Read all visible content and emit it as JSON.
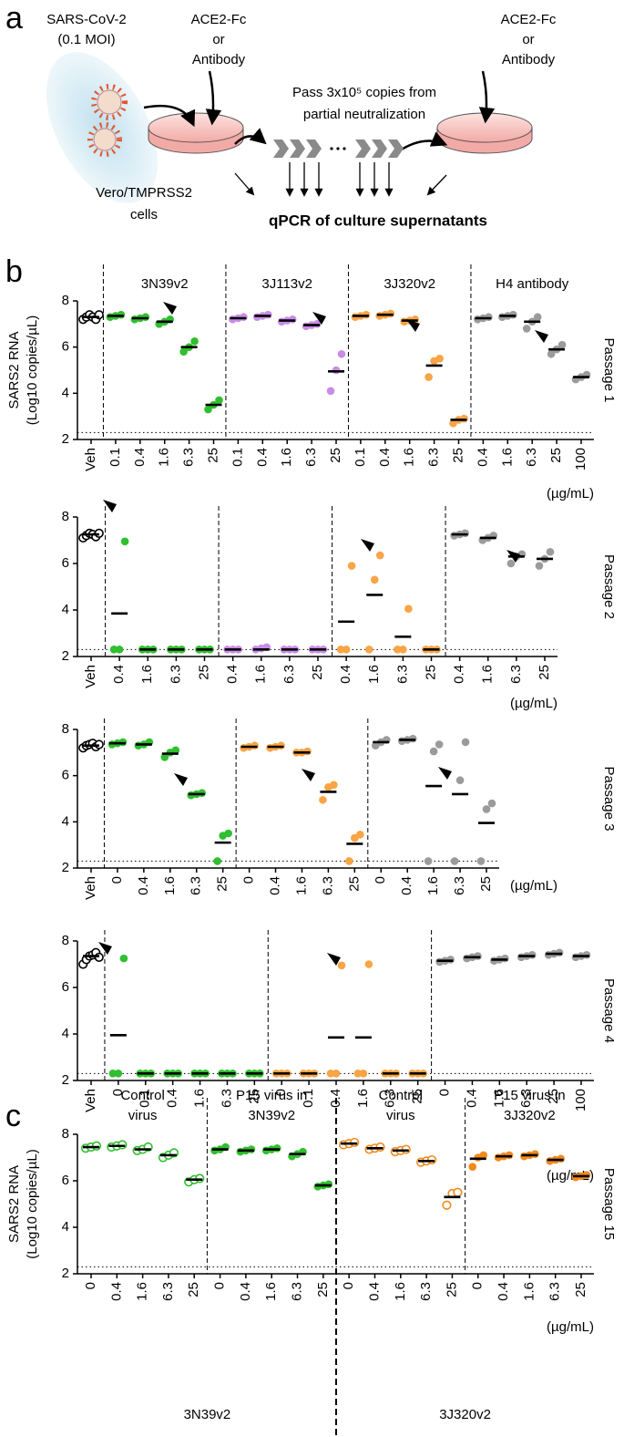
{
  "figure": {
    "panels": [
      "a",
      "b",
      "c"
    ],
    "diagram": {
      "virus_source": [
        "SARS-CoV-2",
        "(0.1 MOI)"
      ],
      "treatment_left": [
        "ACE2-Fc",
        "or",
        "Antibody"
      ],
      "treatment_right": [
        "ACE2-Fc",
        "or",
        "Antibody"
      ],
      "passage": [
        "Pass 3x10⁵ copies from",
        "partial neutralization"
      ],
      "cells": [
        "Vero/TMPRSS2",
        "cells"
      ],
      "readout": "qPCR of culture supernatants"
    }
  },
  "chart_data": [
    {
      "type": "dot",
      "title": "Passage 1",
      "ylabel": [
        "SARS2 RNA",
        "(Log10 copies/µL)"
      ],
      "ylim": [
        2,
        8
      ],
      "yticks": [
        2,
        4,
        6,
        8
      ],
      "limit": 2.3,
      "unit": "(µg/mL)",
      "groups": [
        {
          "color": "#000000",
          "open": true,
          "categories": [
            "Veh"
          ],
          "values": [
            7.3
          ],
          "points": [
            [
              7.2,
              7.3,
              7.4,
              7.3,
              7.2,
              7.4
            ]
          ]
        },
        {
          "name": "3N39v2",
          "color": "#2fbf2f",
          "categories": [
            "0.1",
            "0.4",
            "1.6",
            "6.3",
            "25"
          ],
          "values": [
            7.35,
            7.25,
            7.1,
            6.0,
            3.5
          ],
          "points": [
            [
              7.3,
              7.35,
              7.4
            ],
            [
              7.2,
              7.25,
              7.3
            ],
            [
              7.0,
              7.1,
              7.2
            ],
            [
              5.8,
              6.0,
              6.25
            ],
            [
              3.3,
              3.5,
              3.7
            ]
          ]
        },
        {
          "name": "3J113v2",
          "color": "#c98ce6",
          "categories": [
            "0.1",
            "0.4",
            "1.6",
            "6.3",
            "25"
          ],
          "values": [
            7.25,
            7.35,
            7.15,
            6.95,
            4.95
          ],
          "points": [
            [
              7.2,
              7.25,
              7.3
            ],
            [
              7.3,
              7.35,
              7.4
            ],
            [
              7.1,
              7.15,
              7.2
            ],
            [
              6.9,
              6.95,
              7.0
            ],
            [
              4.1,
              5.0,
              5.7
            ]
          ]
        },
        {
          "name": "3J320v2",
          "color": "#f9a445",
          "categories": [
            "0.1",
            "0.4",
            "1.6",
            "6.3",
            "25"
          ],
          "values": [
            7.35,
            7.4,
            7.15,
            5.2,
            2.85
          ],
          "points": [
            [
              7.3,
              7.35,
              7.4
            ],
            [
              7.35,
              7.4,
              7.45
            ],
            [
              7.1,
              7.15,
              7.2
            ],
            [
              4.7,
              5.4,
              5.5
            ],
            [
              2.7,
              2.85,
              2.9
            ]
          ]
        },
        {
          "name": "H4 antibody",
          "color": "#9b9b9b",
          "categories": [
            "0.4",
            "1.6",
            "6.3",
            "25",
            "100"
          ],
          "values": [
            7.25,
            7.35,
            7.1,
            5.9,
            4.7
          ],
          "points": [
            [
              7.2,
              7.25,
              7.3
            ],
            [
              7.3,
              7.35,
              7.4
            ],
            [
              6.8,
              7.1,
              7.3
            ],
            [
              5.7,
              5.9,
              6.1
            ],
            [
              4.6,
              4.7,
              4.8
            ]
          ]
        }
      ]
    },
    {
      "type": "dot",
      "title": "Passage 2",
      "ylim": [
        2,
        8
      ],
      "yticks": [
        2,
        4,
        6,
        8
      ],
      "limit": 2.3,
      "unit": "(µg/mL)",
      "groups": [
        {
          "color": "#000000",
          "open": true,
          "categories": [
            "Veh"
          ],
          "values": [
            7.25
          ],
          "points": [
            [
              7.1,
              7.2,
              7.3,
              7.25,
              7.15,
              7.3
            ]
          ]
        },
        {
          "color": "#2fbf2f",
          "categories": [
            "0.4",
            "1.6",
            "6.3",
            "25"
          ],
          "values": [
            3.85,
            2.3,
            2.3,
            2.3
          ],
          "points": [
            [
              2.3,
              2.3,
              6.95
            ],
            [
              2.3,
              2.3,
              2.3
            ],
            [
              2.3,
              2.3,
              2.3
            ],
            [
              2.3,
              2.3,
              2.3
            ]
          ]
        },
        {
          "color": "#c98ce6",
          "categories": [
            "0.4",
            "1.6",
            "6.3",
            "25"
          ],
          "values": [
            2.3,
            2.3,
            2.3,
            2.3
          ],
          "points": [
            [
              2.3,
              2.3,
              2.3
            ],
            [
              2.3,
              2.35,
              2.4
            ],
            [
              2.3,
              2.3,
              2.3
            ],
            [
              2.3,
              2.3,
              2.3
            ]
          ]
        },
        {
          "color": "#f9a445",
          "categories": [
            "0.4",
            "1.6",
            "6.3",
            "25"
          ],
          "values": [
            3.5,
            4.65,
            2.85,
            2.3
          ],
          "points": [
            [
              2.3,
              2.3,
              5.9
            ],
            [
              2.3,
              5.3,
              6.35
            ],
            [
              2.3,
              2.3,
              4.05
            ],
            [
              2.3,
              2.3,
              2.3
            ]
          ]
        },
        {
          "color": "#9b9b9b",
          "categories": [
            "0.4",
            "1.6",
            "6.3",
            "25"
          ],
          "values": [
            7.25,
            7.1,
            6.3,
            6.2
          ],
          "points": [
            [
              7.2,
              7.25,
              7.3
            ],
            [
              7.0,
              7.1,
              7.2
            ],
            [
              6.0,
              6.3,
              6.4
            ],
            [
              5.9,
              6.2,
              6.5
            ]
          ]
        }
      ]
    },
    {
      "type": "dot",
      "title": "Passage 3",
      "ylim": [
        2,
        8
      ],
      "yticks": [
        2,
        4,
        6,
        8
      ],
      "limit": 2.3,
      "unit": "(µg/mL)",
      "groups": [
        {
          "color": "#000000",
          "open": true,
          "categories": [
            "Veh"
          ],
          "values": [
            7.3
          ],
          "points": [
            [
              7.2,
              7.3,
              7.35,
              7.4,
              7.25,
              7.35
            ]
          ]
        },
        {
          "color": "#2fbf2f",
          "categories": [
            "0",
            "0.4",
            "1.6",
            "6.3",
            "25"
          ],
          "values": [
            7.4,
            7.35,
            6.95,
            5.2,
            3.1
          ],
          "points": [
            [
              7.35,
              7.4,
              7.45
            ],
            [
              7.3,
              7.35,
              7.45
            ],
            [
              6.8,
              7.0,
              7.1
            ],
            [
              5.15,
              5.2,
              5.25
            ],
            [
              2.3,
              3.4,
              3.5
            ]
          ]
        },
        {
          "color": "#f9a445",
          "categories": [
            "0",
            "0.4",
            "1.6",
            "6.3",
            "25"
          ],
          "values": [
            7.25,
            7.25,
            7.0,
            5.3,
            3.05
          ],
          "points": [
            [
              7.2,
              7.25,
              7.3
            ],
            [
              7.2,
              7.25,
              7.3
            ],
            [
              7.0,
              7.0,
              7.05
            ],
            [
              4.95,
              5.5,
              5.6
            ],
            [
              2.3,
              3.3,
              3.45
            ]
          ]
        },
        {
          "color": "#9b9b9b",
          "categories": [
            "0",
            "0.4",
            "1.6",
            "6.3",
            "25"
          ],
          "values": [
            7.45,
            7.55,
            5.55,
            5.2,
            3.95
          ],
          "points": [
            [
              7.3,
              7.45,
              7.55
            ],
            [
              7.5,
              7.55,
              7.6
            ],
            [
              2.3,
              7.05,
              7.35
            ],
            [
              2.3,
              5.8,
              7.45
            ],
            [
              2.3,
              4.55,
              4.8
            ]
          ]
        }
      ]
    },
    {
      "type": "dot",
      "title": "Passage 4",
      "ylim": [
        2,
        8
      ],
      "yticks": [
        2,
        4,
        6,
        8
      ],
      "limit": 2.3,
      "unit": "(µg/mL)",
      "groups": [
        {
          "color": "#000000",
          "open": true,
          "categories": [
            "Veh"
          ],
          "values": [
            7.35
          ],
          "points": [
            [
              7.0,
              7.2,
              7.35,
              7.4,
              7.5,
              7.3
            ]
          ]
        },
        {
          "color": "#2fbf2f",
          "categories": [
            "0",
            "0.1",
            "0.4",
            "1.6",
            "6.3",
            "25"
          ],
          "values": [
            3.95,
            2.3,
            2.3,
            2.3,
            2.3,
            2.3
          ],
          "points": [
            [
              2.3,
              2.3,
              7.25
            ],
            [
              2.3,
              2.3,
              2.3
            ],
            [
              2.3,
              2.3,
              2.3
            ],
            [
              2.3,
              2.3,
              2.3
            ],
            [
              2.3,
              2.3,
              2.3
            ],
            [
              2.3,
              2.3,
              2.3
            ]
          ]
        },
        {
          "color": "#f9a445",
          "categories": [
            "0",
            "0.1",
            "0.4",
            "1.6",
            "6.3",
            "25"
          ],
          "values": [
            2.3,
            2.3,
            3.85,
            3.85,
            2.3,
            2.3
          ],
          "points": [
            [
              2.3,
              2.3,
              2.3
            ],
            [
              2.3,
              2.3,
              2.3
            ],
            [
              2.3,
              2.3,
              6.95
            ],
            [
              2.3,
              2.3,
              7.0
            ],
            [
              2.3,
              2.3,
              2.3
            ],
            [
              2.3,
              2.3,
              2.3
            ]
          ]
        },
        {
          "color": "#9b9b9b",
          "categories": [
            "0",
            "0.4",
            "1.6",
            "6.3",
            "25",
            "100"
          ],
          "values": [
            7.15,
            7.3,
            7.2,
            7.35,
            7.45,
            7.35
          ],
          "points": [
            [
              7.1,
              7.15,
              7.2
            ],
            [
              7.25,
              7.3,
              7.35
            ],
            [
              7.15,
              7.2,
              7.25
            ],
            [
              7.3,
              7.35,
              7.4
            ],
            [
              7.4,
              7.45,
              7.5
            ],
            [
              7.3,
              7.35,
              7.4
            ]
          ]
        }
      ]
    },
    {
      "type": "dot",
      "title": "Passage 15",
      "ylabel": [
        "SARS2 RNA",
        "(Log10 copies/µL)"
      ],
      "ylim": [
        2,
        8
      ],
      "yticks": [
        2,
        4,
        6,
        8
      ],
      "limit": 2.3,
      "unit": "(µg/mL)",
      "footer": [
        "3N39v2",
        "3J320v2"
      ],
      "groups": [
        {
          "name": [
            "Control",
            "virus"
          ],
          "color": "#2fbf2f",
          "open": true,
          "categories": [
            "0",
            "0.4",
            "1.6",
            "6.3",
            "25"
          ],
          "values": [
            7.45,
            7.5,
            7.35,
            7.1,
            6.05
          ],
          "points": [
            [
              7.4,
              7.45,
              7.5
            ],
            [
              7.45,
              7.5,
              7.55
            ],
            [
              7.3,
              7.35,
              7.45
            ],
            [
              7.0,
              7.1,
              7.2
            ],
            [
              5.95,
              6.05,
              6.1
            ]
          ]
        },
        {
          "name": [
            "P15 virus in",
            "3N39v2"
          ],
          "color": "#2fbf2f",
          "categories": [
            "0",
            "0.4",
            "1.6",
            "6.3",
            "25"
          ],
          "values": [
            7.35,
            7.3,
            7.35,
            7.15,
            5.8
          ],
          "points": [
            [
              7.3,
              7.35,
              7.45
            ],
            [
              7.25,
              7.3,
              7.35
            ],
            [
              7.3,
              7.35,
              7.4
            ],
            [
              7.05,
              7.15,
              7.25
            ],
            [
              5.75,
              5.8,
              5.85
            ]
          ]
        },
        {
          "name": [
            "Control",
            "virus"
          ],
          "color": "#f28a1e",
          "open": true,
          "categories": [
            "0",
            "0.4",
            "1.6",
            "6.3",
            "25"
          ],
          "values": [
            7.6,
            7.4,
            7.3,
            6.85,
            5.3
          ],
          "points": [
            [
              7.55,
              7.6,
              7.65
            ],
            [
              7.35,
              7.4,
              7.45
            ],
            [
              7.25,
              7.3,
              7.35
            ],
            [
              6.8,
              6.85,
              6.9
            ],
            [
              4.95,
              5.45,
              5.5
            ]
          ]
        },
        {
          "name": [
            "P15 virus in",
            "3J320v2"
          ],
          "color": "#f28a1e",
          "categories": [
            "0",
            "0.4",
            "1.6",
            "6.3",
            "25"
          ],
          "values": [
            6.95,
            7.05,
            7.1,
            6.9,
            6.2
          ],
          "points": [
            [
              6.6,
              7.0,
              7.1
            ],
            [
              7.0,
              7.05,
              7.1
            ],
            [
              7.05,
              7.1,
              7.15
            ],
            [
              6.85,
              6.9,
              6.95
            ],
            [
              6.15,
              6.2,
              6.25
            ]
          ]
        }
      ]
    }
  ]
}
